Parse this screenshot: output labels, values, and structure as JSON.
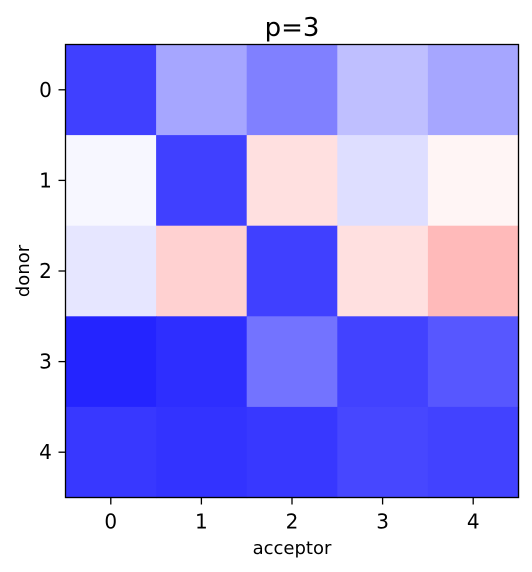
{
  "chart_data": {
    "type": "heatmap",
    "title": "p=3",
    "xlabel": "acceptor",
    "ylabel": "donor",
    "x_categories": [
      "0",
      "1",
      "2",
      "3",
      "4"
    ],
    "y_categories": [
      "0",
      "1",
      "2",
      "3",
      "4"
    ],
    "colormap": "bwr",
    "value_range": [
      -1,
      1
    ],
    "values": [
      [
        -0.75,
        -0.35,
        -0.5,
        -0.25,
        -0.35
      ],
      [
        -0.03,
        -0.75,
        0.12,
        -0.13,
        0.04
      ],
      [
        -0.1,
        0.18,
        -0.75,
        0.12,
        0.27
      ],
      [
        -0.86,
        -0.82,
        -0.55,
        -0.74,
        -0.66
      ],
      [
        -0.78,
        -0.8,
        -0.78,
        -0.72,
        -0.74
      ]
    ],
    "grid": false,
    "legend": "none"
  }
}
